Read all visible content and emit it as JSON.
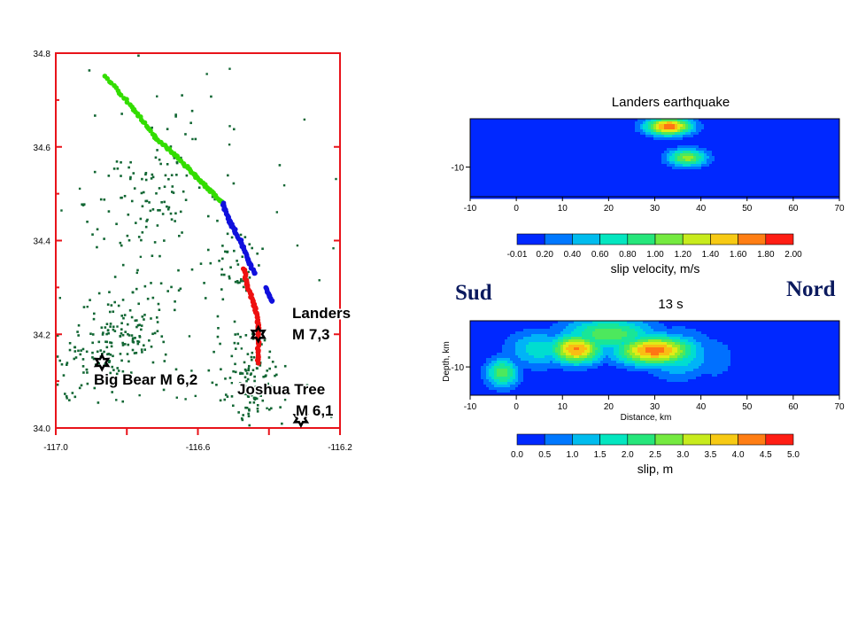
{
  "labels": {
    "left": "Sud",
    "right": "Nord"
  },
  "chart_data": [
    {
      "type": "scatter",
      "title": "",
      "xlim": [
        -117.0,
        -116.2
      ],
      "ylim": [
        34.0,
        34.8
      ],
      "x_ticks": [
        "-117.0",
        "-116.6",
        "-116.2"
      ],
      "y_ticks": [
        "34.0",
        "34.2",
        "34.4",
        "34.6",
        "34.8"
      ],
      "series": [
        {
          "color": "#33dd00",
          "points": [
            [
              -116.86,
              34.75
            ],
            [
              -116.78,
              34.68
            ],
            [
              -116.72,
              34.62
            ],
            [
              -116.66,
              34.58
            ],
            [
              -116.61,
              34.54
            ],
            [
              -116.57,
              34.51
            ],
            [
              -116.53,
              34.48
            ]
          ]
        },
        {
          "color": "#1010dd",
          "points": [
            [
              -116.53,
              34.48
            ],
            [
              -116.51,
              34.44
            ],
            [
              -116.48,
              34.4
            ],
            [
              -116.46,
              34.36
            ],
            [
              -116.44,
              34.33
            ]
          ]
        },
        {
          "color": "#ee1010",
          "points": [
            [
              -116.47,
              34.34
            ],
            [
              -116.46,
              34.3
            ],
            [
              -116.44,
              34.26
            ],
            [
              -116.43,
              34.22
            ],
            [
              -116.43,
              34.18
            ],
            [
              -116.43,
              34.14
            ]
          ]
        },
        {
          "color": "#1010dd",
          "points": [
            [
              -116.41,
              34.3
            ],
            [
              -116.39,
              34.27
            ]
          ]
        }
      ],
      "clusters": [
        {
          "x": -116.72,
          "y": 34.53,
          "sx": 0.09,
          "sy": 0.08,
          "n": 85
        },
        {
          "x": -116.8,
          "y": 34.2,
          "sx": 0.06,
          "sy": 0.05,
          "n": 120
        },
        {
          "x": -116.92,
          "y": 34.15,
          "sx": 0.06,
          "sy": 0.04,
          "n": 60
        },
        {
          "x": -116.45,
          "y": 34.1,
          "sx": 0.05,
          "sy": 0.05,
          "n": 120
        },
        {
          "x": -116.5,
          "y": 34.35,
          "sx": 0.04,
          "sy": 0.06,
          "n": 45
        },
        {
          "x": -116.72,
          "y": 34.38,
          "sx": 0.12,
          "sy": 0.12,
          "n": 60
        }
      ],
      "event_color": "#116633",
      "epicenters": [
        {
          "x": -116.43,
          "y": 34.2,
          "lines": [
            "Landers",
            "M 7,3"
          ]
        },
        {
          "x": -116.87,
          "y": 34.14,
          "lines": [
            "Big Bear M 6,2"
          ]
        },
        {
          "x": -116.31,
          "y": 34.02,
          "lines": [
            "Joshua Tree",
            "M 6,1"
          ]
        }
      ]
    },
    {
      "type": "heatmap",
      "title": "Landers earthquake",
      "xlim": [
        -10,
        70
      ],
      "x_ticks": [
        "-10",
        "0",
        "10",
        "20",
        "30",
        "40",
        "50",
        "60",
        "70"
      ],
      "y_ticks": [
        "-10"
      ],
      "peaks": [
        {
          "x": 33,
          "y": 10,
          "sx": 3.5,
          "sy": 8,
          "v": 1.95
        },
        {
          "x": 37,
          "y": 50,
          "sx": 3.0,
          "sy": 8,
          "v": 1.3
        }
      ],
      "colorbar": {
        "label": "slip velocity, m/s",
        "ticks": [
          "-0.01",
          "0.20",
          "0.40",
          "0.60",
          "0.80",
          "1.00",
          "1.20",
          "1.40",
          "1.60",
          "1.80",
          "2.00"
        ]
      }
    },
    {
      "type": "heatmap",
      "title": "13 s",
      "xlabel": "Distance, km",
      "ylabel": "Depth, km",
      "xlim": [
        -10,
        70
      ],
      "x_ticks": [
        "-10",
        "0",
        "10",
        "20",
        "30",
        "40",
        "50",
        "60",
        "70"
      ],
      "y_ticks": [
        "-10"
      ],
      "peaks": [
        {
          "x": 13,
          "y": 38,
          "sx": 4,
          "sy": 14,
          "v": 4.6
        },
        {
          "x": 30,
          "y": 40,
          "sx": 6,
          "sy": 14,
          "v": 4.8
        },
        {
          "x": -3,
          "y": 70,
          "sx": 2.5,
          "sy": 14,
          "v": 2.8
        },
        {
          "x": 20,
          "y": 18,
          "sx": 7,
          "sy": 16,
          "v": 2.9
        },
        {
          "x": 5,
          "y": 38,
          "sx": 5,
          "sy": 18,
          "v": 1.8
        },
        {
          "x": 35,
          "y": 45,
          "sx": 5,
          "sy": 22,
          "v": 2.0
        },
        {
          "x": 43,
          "y": 50,
          "sx": 3,
          "sy": 20,
          "v": 1.0
        }
      ],
      "colorbar": {
        "label": "slip, m",
        "ticks": [
          "0.0",
          "0.5",
          "1.0",
          "1.5",
          "2.0",
          "2.5",
          "3.0",
          "3.5",
          "4.0",
          "4.5",
          "5.0"
        ]
      }
    }
  ]
}
